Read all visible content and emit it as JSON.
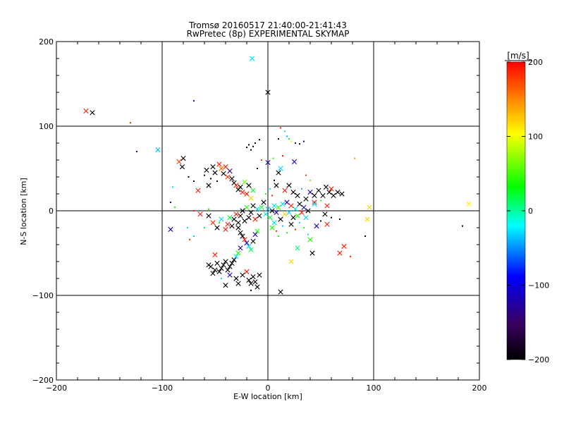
{
  "chart_data": {
    "type": "scatter",
    "title": "Tromsø 20160517 21:40:00-21:41:43",
    "subtitle": "RwPretec (8p) EXPERIMENTAL SKYMAP",
    "xlabel": "E-W location [km]",
    "ylabel": "N-S location [km]",
    "xlim": [
      -200,
      200
    ],
    "ylim": [
      -200,
      200
    ],
    "xticks": [
      -200,
      -100,
      0,
      100,
      200
    ],
    "yticks": [
      -200,
      -100,
      0,
      100,
      200
    ],
    "xtick_labels": [
      "−200",
      "−100",
      "0",
      "100",
      "200"
    ],
    "ytick_labels": [
      "−200",
      "−100",
      "0",
      "100",
      "200"
    ],
    "grid": true,
    "colorbar": {
      "label": "[m/s]",
      "range": [
        -200,
        200
      ],
      "ticks": [
        200,
        100,
        0,
        -100,
        -200
      ],
      "tick_labels": [
        "200",
        "100",
        "0",
        "−100",
        "−200"
      ],
      "colormap": [
        "#000000",
        "#3a0060",
        "#0000ff",
        "#00ffff",
        "#00ff00",
        "#ffff00",
        "#ff0000"
      ]
    },
    "points": [
      {
        "x": -172,
        "y": 118,
        "v": 190,
        "m": "x"
      },
      {
        "x": -166,
        "y": 116,
        "v": -200,
        "m": "x"
      },
      {
        "x": -130,
        "y": 104,
        "v": 190,
        "m": "d"
      },
      {
        "x": -124,
        "y": 70,
        "v": -130,
        "m": "d"
      },
      {
        "x": -104,
        "y": 72,
        "v": -40,
        "m": "x"
      },
      {
        "x": -70,
        "y": 130,
        "v": -110,
        "m": "d"
      },
      {
        "x": -15,
        "y": 180,
        "v": -30,
        "m": "x"
      },
      {
        "x": 0,
        "y": 140,
        "v": -200,
        "m": "x"
      },
      {
        "x": -92,
        "y": -22,
        "v": -110,
        "m": "x"
      },
      {
        "x": -92,
        "y": 10,
        "v": -120,
        "m": "d"
      },
      {
        "x": -84,
        "y": 58,
        "v": 180,
        "m": "x"
      },
      {
        "x": -80,
        "y": 62,
        "v": -200,
        "m": "x"
      },
      {
        "x": -81,
        "y": 52,
        "v": -200,
        "m": "x"
      },
      {
        "x": -75,
        "y": 40,
        "v": -200,
        "m": "d"
      },
      {
        "x": -70,
        "y": 35,
        "v": -200,
        "m": "d"
      },
      {
        "x": -66,
        "y": 24,
        "v": 190,
        "m": "x"
      },
      {
        "x": -60,
        "y": 42,
        "v": -200,
        "m": "d"
      },
      {
        "x": -58,
        "y": 48,
        "v": -200,
        "m": "x"
      },
      {
        "x": -56,
        "y": 30,
        "v": -200,
        "m": "x"
      },
      {
        "x": -54,
        "y": 38,
        "v": -200,
        "m": "d"
      },
      {
        "x": -52,
        "y": 52,
        "v": -200,
        "m": "x"
      },
      {
        "x": -50,
        "y": 45,
        "v": -200,
        "m": "x"
      },
      {
        "x": -48,
        "y": 35,
        "v": -200,
        "m": "d"
      },
      {
        "x": -46,
        "y": 55,
        "v": 190,
        "m": "x"
      },
      {
        "x": -44,
        "y": 50,
        "v": 160,
        "m": "x"
      },
      {
        "x": -42,
        "y": 44,
        "v": -200,
        "m": "x"
      },
      {
        "x": -40,
        "y": 52,
        "v": 190,
        "m": "x"
      },
      {
        "x": -38,
        "y": 40,
        "v": 180,
        "m": "x"
      },
      {
        "x": -36,
        "y": 47,
        "v": -150,
        "m": "x"
      },
      {
        "x": -34,
        "y": 38,
        "v": -200,
        "m": "x"
      },
      {
        "x": -32,
        "y": 33,
        "v": -200,
        "m": "x"
      },
      {
        "x": -30,
        "y": 30,
        "v": 190,
        "m": "x"
      },
      {
        "x": -28,
        "y": 25,
        "v": -200,
        "m": "x"
      },
      {
        "x": -26,
        "y": 28,
        "v": -200,
        "m": "x"
      },
      {
        "x": -24,
        "y": 22,
        "v": 190,
        "m": "x"
      },
      {
        "x": -22,
        "y": 34,
        "v": 60,
        "m": "x"
      },
      {
        "x": -20,
        "y": 20,
        "v": 190,
        "m": "x"
      },
      {
        "x": -18,
        "y": 30,
        "v": -200,
        "m": "x"
      },
      {
        "x": -16,
        "y": 15,
        "v": 120,
        "m": "x"
      },
      {
        "x": -14,
        "y": 24,
        "v": 20,
        "m": "x"
      },
      {
        "x": -20,
        "y": 75,
        "v": -200,
        "m": "d"
      },
      {
        "x": -18,
        "y": 78,
        "v": -200,
        "m": "d"
      },
      {
        "x": -16,
        "y": 72,
        "v": -200,
        "m": "d"
      },
      {
        "x": -14,
        "y": 76,
        "v": -200,
        "m": "d"
      },
      {
        "x": -12,
        "y": 80,
        "v": -200,
        "m": "d"
      },
      {
        "x": -8,
        "y": 84,
        "v": -200,
        "m": "d"
      },
      {
        "x": -10,
        "y": 50,
        "v": -200,
        "m": "d"
      },
      {
        "x": -6,
        "y": 60,
        "v": 180,
        "m": "d"
      },
      {
        "x": 0,
        "y": 57,
        "v": -120,
        "m": "x"
      },
      {
        "x": 5,
        "y": 62,
        "v": 40,
        "m": "d"
      },
      {
        "x": 10,
        "y": 85,
        "v": -200,
        "m": "d"
      },
      {
        "x": 12,
        "y": 98,
        "v": 190,
        "m": "d"
      },
      {
        "x": 16,
        "y": 94,
        "v": 10,
        "m": "d"
      },
      {
        "x": 18,
        "y": 88,
        "v": -40,
        "m": "d"
      },
      {
        "x": 20,
        "y": 85,
        "v": 20,
        "m": "d"
      },
      {
        "x": 22,
        "y": 82,
        "v": 110,
        "m": "d"
      },
      {
        "x": 26,
        "y": 80,
        "v": -130,
        "m": "d"
      },
      {
        "x": 30,
        "y": 79,
        "v": -200,
        "m": "d"
      },
      {
        "x": 34,
        "y": 82,
        "v": -120,
        "m": "d"
      },
      {
        "x": 14,
        "y": 65,
        "v": 190,
        "m": "d"
      },
      {
        "x": 25,
        "y": 58,
        "v": -120,
        "m": "x"
      },
      {
        "x": 36,
        "y": 42,
        "v": 180,
        "m": "d"
      },
      {
        "x": 40,
        "y": 36,
        "v": 60,
        "m": "d"
      },
      {
        "x": 10,
        "y": 45,
        "v": -200,
        "m": "x"
      },
      {
        "x": 12,
        "y": 50,
        "v": -30,
        "m": "x"
      },
      {
        "x": 8,
        "y": 30,
        "v": -200,
        "m": "x"
      },
      {
        "x": 16,
        "y": 24,
        "v": 190,
        "m": "x"
      },
      {
        "x": 20,
        "y": 30,
        "v": -200,
        "m": "x"
      },
      {
        "x": 24,
        "y": 22,
        "v": -200,
        "m": "x"
      },
      {
        "x": 28,
        "y": 18,
        "v": -200,
        "m": "x"
      },
      {
        "x": 32,
        "y": 26,
        "v": -40,
        "m": "d"
      },
      {
        "x": 36,
        "y": 14,
        "v": -200,
        "m": "x"
      },
      {
        "x": 40,
        "y": 22,
        "v": -120,
        "m": "x"
      },
      {
        "x": 44,
        "y": 18,
        "v": -200,
        "m": "x"
      },
      {
        "x": 48,
        "y": 24,
        "v": -200,
        "m": "x"
      },
      {
        "x": 52,
        "y": 18,
        "v": -200,
        "m": "x"
      },
      {
        "x": 55,
        "y": 28,
        "v": -200,
        "m": "x"
      },
      {
        "x": 58,
        "y": 22,
        "v": -200,
        "m": "x"
      },
      {
        "x": 60,
        "y": 26,
        "v": 190,
        "m": "x"
      },
      {
        "x": 62,
        "y": 18,
        "v": -200,
        "m": "x"
      },
      {
        "x": 66,
        "y": 22,
        "v": -200,
        "m": "x"
      },
      {
        "x": 70,
        "y": 20,
        "v": -200,
        "m": "x"
      },
      {
        "x": 44,
        "y": 10,
        "v": 190,
        "m": "x"
      },
      {
        "x": 56,
        "y": 6,
        "v": 190,
        "m": "x"
      },
      {
        "x": 54,
        "y": -4,
        "v": -200,
        "m": "x"
      },
      {
        "x": 60,
        "y": -8,
        "v": -200,
        "m": "d"
      },
      {
        "x": 56,
        "y": -16,
        "v": 190,
        "m": "x"
      },
      {
        "x": 68,
        "y": -10,
        "v": -200,
        "m": "d"
      },
      {
        "x": 72,
        "y": -42,
        "v": 190,
        "m": "x"
      },
      {
        "x": 68,
        "y": -50,
        "v": 190,
        "m": "x"
      },
      {
        "x": 78,
        "y": -54,
        "v": 190,
        "m": "d"
      },
      {
        "x": 96,
        "y": 4,
        "v": 120,
        "m": "x"
      },
      {
        "x": 94,
        "y": -10,
        "v": 120,
        "m": "x"
      },
      {
        "x": 92,
        "y": -30,
        "v": -200,
        "m": "d"
      },
      {
        "x": 190,
        "y": 8,
        "v": 110,
        "m": "x"
      },
      {
        "x": 184,
        "y": -18,
        "v": -200,
        "m": "d"
      },
      {
        "x": 82,
        "y": 62,
        "v": 140,
        "m": "d"
      },
      {
        "x": 40,
        "y": -34,
        "v": 40,
        "m": "x"
      },
      {
        "x": 42,
        "y": -50,
        "v": -200,
        "m": "x"
      },
      {
        "x": 28,
        "y": -44,
        "v": 10,
        "m": "x"
      },
      {
        "x": 22,
        "y": -60,
        "v": 120,
        "m": "x"
      },
      {
        "x": 12,
        "y": -96,
        "v": -200,
        "m": "x"
      },
      {
        "x": -2,
        "y": -4,
        "v": -30,
        "m": "x"
      },
      {
        "x": 0,
        "y": 2,
        "v": -40,
        "m": "x"
      },
      {
        "x": 2,
        "y": -8,
        "v": 20,
        "m": "x"
      },
      {
        "x": 4,
        "y": 0,
        "v": -200,
        "m": "x"
      },
      {
        "x": 6,
        "y": 6,
        "v": -30,
        "m": "x"
      },
      {
        "x": 8,
        "y": -2,
        "v": -120,
        "m": "x"
      },
      {
        "x": 10,
        "y": 4,
        "v": 40,
        "m": "x"
      },
      {
        "x": 12,
        "y": -10,
        "v": -200,
        "m": "x"
      },
      {
        "x": 14,
        "y": 8,
        "v": -30,
        "m": "x"
      },
      {
        "x": 16,
        "y": -4,
        "v": 120,
        "m": "x"
      },
      {
        "x": 18,
        "y": 10,
        "v": -120,
        "m": "x"
      },
      {
        "x": 20,
        "y": -2,
        "v": -30,
        "m": "x"
      },
      {
        "x": 22,
        "y": 6,
        "v": 190,
        "m": "x"
      },
      {
        "x": 24,
        "y": -8,
        "v": -200,
        "m": "x"
      },
      {
        "x": 26,
        "y": 2,
        "v": -30,
        "m": "x"
      },
      {
        "x": 28,
        "y": -6,
        "v": 40,
        "m": "x"
      },
      {
        "x": 30,
        "y": 8,
        "v": -200,
        "m": "x"
      },
      {
        "x": 32,
        "y": -2,
        "v": 190,
        "m": "x"
      },
      {
        "x": 34,
        "y": 4,
        "v": -120,
        "m": "x"
      },
      {
        "x": 36,
        "y": -8,
        "v": -30,
        "m": "x"
      },
      {
        "x": 38,
        "y": 0,
        "v": -200,
        "m": "x"
      },
      {
        "x": -4,
        "y": 10,
        "v": -200,
        "m": "x"
      },
      {
        "x": -6,
        "y": 4,
        "v": 20,
        "m": "x"
      },
      {
        "x": -8,
        "y": -6,
        "v": -200,
        "m": "x"
      },
      {
        "x": -10,
        "y": 2,
        "v": -30,
        "m": "x"
      },
      {
        "x": -12,
        "y": -10,
        "v": 190,
        "m": "x"
      },
      {
        "x": -14,
        "y": 6,
        "v": -200,
        "m": "x"
      },
      {
        "x": -16,
        "y": -2,
        "v": -200,
        "m": "x"
      },
      {
        "x": -18,
        "y": -8,
        "v": -200,
        "m": "x"
      },
      {
        "x": -20,
        "y": 4,
        "v": 40,
        "m": "x"
      },
      {
        "x": -22,
        "y": -12,
        "v": -200,
        "m": "x"
      },
      {
        "x": -24,
        "y": 0,
        "v": -200,
        "m": "x"
      },
      {
        "x": -26,
        "y": -6,
        "v": -200,
        "m": "x"
      },
      {
        "x": -28,
        "y": -14,
        "v": -200,
        "m": "x"
      },
      {
        "x": -30,
        "y": -4,
        "v": 190,
        "m": "x"
      },
      {
        "x": -32,
        "y": -10,
        "v": -200,
        "m": "x"
      },
      {
        "x": -34,
        "y": -18,
        "v": -200,
        "m": "x"
      },
      {
        "x": -36,
        "y": -8,
        "v": 20,
        "m": "x"
      },
      {
        "x": -38,
        "y": -16,
        "v": 190,
        "m": "x"
      },
      {
        "x": -40,
        "y": -22,
        "v": 190,
        "m": "x"
      },
      {
        "x": -44,
        "y": -10,
        "v": -30,
        "m": "x"
      },
      {
        "x": -48,
        "y": -20,
        "v": -200,
        "m": "x"
      },
      {
        "x": -52,
        "y": -14,
        "v": 190,
        "m": "x"
      },
      {
        "x": -56,
        "y": -6,
        "v": -200,
        "m": "x"
      },
      {
        "x": -60,
        "y": -20,
        "v": 20,
        "m": "d"
      },
      {
        "x": -64,
        "y": -4,
        "v": 190,
        "m": "x"
      },
      {
        "x": -70,
        "y": -30,
        "v": -30,
        "m": "d"
      },
      {
        "x": -74,
        "y": -34,
        "v": 190,
        "m": "d"
      },
      {
        "x": -76,
        "y": -20,
        "v": -30,
        "m": "d"
      },
      {
        "x": -88,
        "y": 4,
        "v": 20,
        "m": "d"
      },
      {
        "x": -90,
        "y": 28,
        "v": -30,
        "m": "d"
      },
      {
        "x": -70,
        "y": 0,
        "v": 190,
        "m": "d"
      },
      {
        "x": -56,
        "y": 2,
        "v": 40,
        "m": "d"
      },
      {
        "x": -46,
        "y": -14,
        "v": 40,
        "m": "d"
      },
      {
        "x": -28,
        "y": -20,
        "v": -200,
        "m": "x"
      },
      {
        "x": -26,
        "y": -26,
        "v": -200,
        "m": "x"
      },
      {
        "x": -24,
        "y": -30,
        "v": -200,
        "m": "x"
      },
      {
        "x": -22,
        "y": -34,
        "v": 190,
        "m": "x"
      },
      {
        "x": -20,
        "y": -38,
        "v": -120,
        "m": "x"
      },
      {
        "x": -18,
        "y": -42,
        "v": -30,
        "m": "x"
      },
      {
        "x": -16,
        "y": -46,
        "v": 20,
        "m": "x"
      },
      {
        "x": -14,
        "y": -36,
        "v": -200,
        "m": "x"
      },
      {
        "x": -12,
        "y": -28,
        "v": -120,
        "m": "x"
      },
      {
        "x": -10,
        "y": -24,
        "v": 40,
        "m": "x"
      },
      {
        "x": -26,
        "y": -44,
        "v": -120,
        "m": "x"
      },
      {
        "x": -28,
        "y": -50,
        "v": 40,
        "m": "x"
      },
      {
        "x": -30,
        "y": -54,
        "v": -30,
        "m": "x"
      },
      {
        "x": -32,
        "y": -58,
        "v": -200,
        "m": "x"
      },
      {
        "x": -34,
        "y": -62,
        "v": -200,
        "m": "x"
      },
      {
        "x": -36,
        "y": -66,
        "v": -200,
        "m": "x"
      },
      {
        "x": -38,
        "y": -70,
        "v": -200,
        "m": "x"
      },
      {
        "x": -40,
        "y": -60,
        "v": -200,
        "m": "x"
      },
      {
        "x": -42,
        "y": -64,
        "v": -200,
        "m": "x"
      },
      {
        "x": -44,
        "y": -68,
        "v": -200,
        "m": "x"
      },
      {
        "x": -46,
        "y": -72,
        "v": -200,
        "m": "x"
      },
      {
        "x": -48,
        "y": -62,
        "v": -200,
        "m": "x"
      },
      {
        "x": -50,
        "y": -70,
        "v": -200,
        "m": "x"
      },
      {
        "x": -52,
        "y": -74,
        "v": -200,
        "m": "x"
      },
      {
        "x": -54,
        "y": -66,
        "v": -200,
        "m": "x"
      },
      {
        "x": -56,
        "y": -64,
        "v": -200,
        "m": "x"
      },
      {
        "x": -50,
        "y": -52,
        "v": 190,
        "m": "x"
      },
      {
        "x": -36,
        "y": -76,
        "v": -120,
        "m": "x"
      },
      {
        "x": -30,
        "y": -80,
        "v": -200,
        "m": "x"
      },
      {
        "x": -28,
        "y": -86,
        "v": -200,
        "m": "x"
      },
      {
        "x": -24,
        "y": -76,
        "v": -200,
        "m": "x"
      },
      {
        "x": -20,
        "y": -72,
        "v": 190,
        "m": "x"
      },
      {
        "x": -18,
        "y": -82,
        "v": -200,
        "m": "x"
      },
      {
        "x": -16,
        "y": -86,
        "v": -200,
        "m": "x"
      },
      {
        "x": -14,
        "y": -78,
        "v": -200,
        "m": "x"
      },
      {
        "x": -12,
        "y": -84,
        "v": -200,
        "m": "x"
      },
      {
        "x": -10,
        "y": -90,
        "v": -200,
        "m": "x"
      },
      {
        "x": -8,
        "y": -76,
        "v": -200,
        "m": "x"
      },
      {
        "x": -16,
        "y": -94,
        "v": -200,
        "m": "d"
      },
      {
        "x": -40,
        "y": -88,
        "v": -200,
        "m": "x"
      },
      {
        "x": -44,
        "y": -80,
        "v": -30,
        "m": "d"
      },
      {
        "x": 4,
        "y": -20,
        "v": 40,
        "m": "x"
      },
      {
        "x": 6,
        "y": -14,
        "v": -30,
        "m": "x"
      },
      {
        "x": 8,
        "y": -24,
        "v": 190,
        "m": "d"
      },
      {
        "x": 10,
        "y": -30,
        "v": 40,
        "m": "d"
      },
      {
        "x": 14,
        "y": -18,
        "v": -30,
        "m": "d"
      },
      {
        "x": 18,
        "y": -26,
        "v": 40,
        "m": "d"
      },
      {
        "x": 22,
        "y": -16,
        "v": -200,
        "m": "x"
      },
      {
        "x": 26,
        "y": -22,
        "v": 190,
        "m": "d"
      },
      {
        "x": 30,
        "y": -14,
        "v": -30,
        "m": "d"
      },
      {
        "x": 34,
        "y": -20,
        "v": 40,
        "m": "d"
      },
      {
        "x": 38,
        "y": -28,
        "v": -30,
        "m": "d"
      },
      {
        "x": 46,
        "y": -18,
        "v": -120,
        "m": "x"
      },
      {
        "x": 50,
        "y": -12,
        "v": -200,
        "m": "d"
      },
      {
        "x": 4,
        "y": 18,
        "v": 190,
        "m": "d"
      },
      {
        "x": 2,
        "y": 26,
        "v": -30,
        "m": "d"
      },
      {
        "x": -2,
        "y": 20,
        "v": 40,
        "m": "d"
      },
      {
        "x": 6,
        "y": 36,
        "v": -200,
        "m": "d"
      },
      {
        "x": 44,
        "y": 8,
        "v": -30,
        "m": "x"
      },
      {
        "x": 50,
        "y": 12,
        "v": 40,
        "m": "d"
      }
    ]
  }
}
